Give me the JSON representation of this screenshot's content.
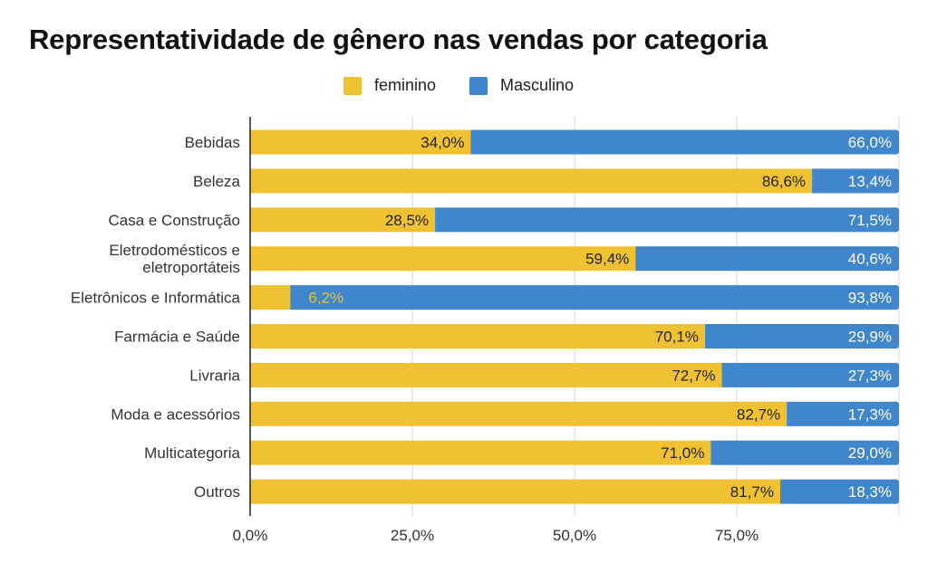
{
  "chart_data": {
    "type": "bar",
    "orientation": "horizontal",
    "stacked": true,
    "title": "Representatividade de gênero nas vendas por categoria",
    "legend_position": "top",
    "grid": true,
    "xlim": [
      0,
      100
    ],
    "x_ticks": [
      "0,0%",
      "25,0%",
      "50,0%",
      "75,0%"
    ],
    "categories": [
      [
        "Bebidas"
      ],
      [
        "Beleza"
      ],
      [
        "Casa e Construção"
      ],
      [
        "Eletrodomésticos e",
        "eletroportáteis"
      ],
      [
        "Eletrônicos e Informática"
      ],
      [
        "Farmácia e Saúde"
      ],
      [
        "Livraria"
      ],
      [
        "Moda e acessórios"
      ],
      [
        "Multicategoria"
      ],
      [
        "Outros"
      ]
    ],
    "series": [
      {
        "name": "feminino",
        "color": "#F0C130",
        "values": [
          34.0,
          86.6,
          28.5,
          59.4,
          6.2,
          70.1,
          72.7,
          82.7,
          71.0,
          81.7
        ],
        "labels": [
          "34,0%",
          "86,6%",
          "28,5%",
          "59,4%",
          "6,2%",
          "70,1%",
          "72,7%",
          "82,7%",
          "71,0%",
          "81,7%"
        ]
      },
      {
        "name": "Masculino",
        "color": "#3F86CC",
        "values": [
          66.0,
          13.4,
          71.5,
          40.6,
          93.8,
          29.9,
          27.3,
          17.3,
          29.0,
          18.3
        ],
        "labels": [
          "66,0%",
          "13,4%",
          "71,5%",
          "40,6%",
          "93,8%",
          "29,9%",
          "27,3%",
          "17,3%",
          "29,0%",
          "18,3%"
        ]
      }
    ]
  }
}
